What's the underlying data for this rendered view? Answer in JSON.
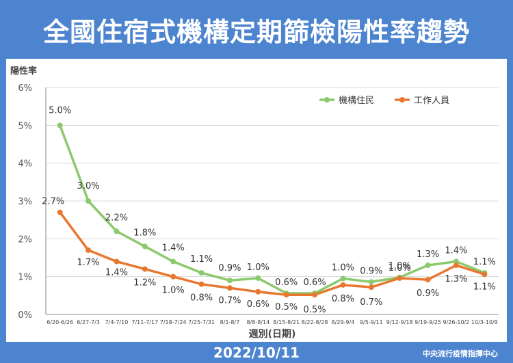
{
  "header": {
    "title": "全國住宿式機構定期篩檢陽性率趨勢"
  },
  "footer": {
    "date": "2022/10/11",
    "org": "中央流行疫情指揮中心"
  },
  "colors": {
    "background": "#4d84cf",
    "series_green": "#8cc96e",
    "series_orange": "#e8782f"
  },
  "chart_data": {
    "type": "line",
    "title": "全國住宿式機構定期篩檢陽性率趨勢",
    "ylabel": "陽性率",
    "xlabel": "週別(日期)",
    "ylim": [
      0,
      6
    ],
    "yticks": [
      "0%",
      "1%",
      "2%",
      "3%",
      "4%",
      "5%",
      "6%"
    ],
    "categories": [
      "6/20-6/26",
      "6/27-7/3",
      "7/4-7/10",
      "7/11-7/17",
      "7/18-7/24",
      "7/25-7/31",
      "8/1-8/7",
      "8/8-8/14",
      "8/15-8/21",
      "8/22-8/28",
      "8/29-9/4",
      "9/5-9/11",
      "9/12-9/18",
      "9/19-9/25",
      "9/26-10/2",
      "10/3-10/9"
    ],
    "legend_position": "top-right",
    "series": [
      {
        "name": "機構住民",
        "values": [
          5.0,
          3.0,
          2.2,
          1.8,
          1.4,
          1.1,
          0.9,
          0.96,
          0.56,
          0.56,
          0.95,
          0.86,
          0.98,
          1.3,
          1.4,
          1.1
        ],
        "labels": [
          "5.0%",
          "3.0%",
          "2.2%",
          "1.8%",
          "1.4%",
          "1.1%",
          "0.9%",
          "1.0%",
          "0.6%",
          "0.6%",
          "1.0%",
          "0.9%",
          "1.0%",
          "1.3%",
          "1.4%",
          "1.1%"
        ]
      },
      {
        "name": "工作人員",
        "values": [
          2.7,
          1.7,
          1.4,
          1.2,
          1.0,
          0.8,
          0.7,
          0.6,
          0.52,
          0.52,
          0.78,
          0.72,
          0.96,
          0.92,
          1.3,
          1.06
        ],
        "labels": [
          "2.7%",
          "1.7%",
          "1.4%",
          "1.2%",
          "1.0%",
          "0.8%",
          "0.7%",
          "0.6%",
          "0.5%",
          "0.5%",
          "0.8%",
          "0.7%",
          "1.0%",
          "0.9%",
          "1.3%",
          "1.1%"
        ]
      }
    ]
  }
}
